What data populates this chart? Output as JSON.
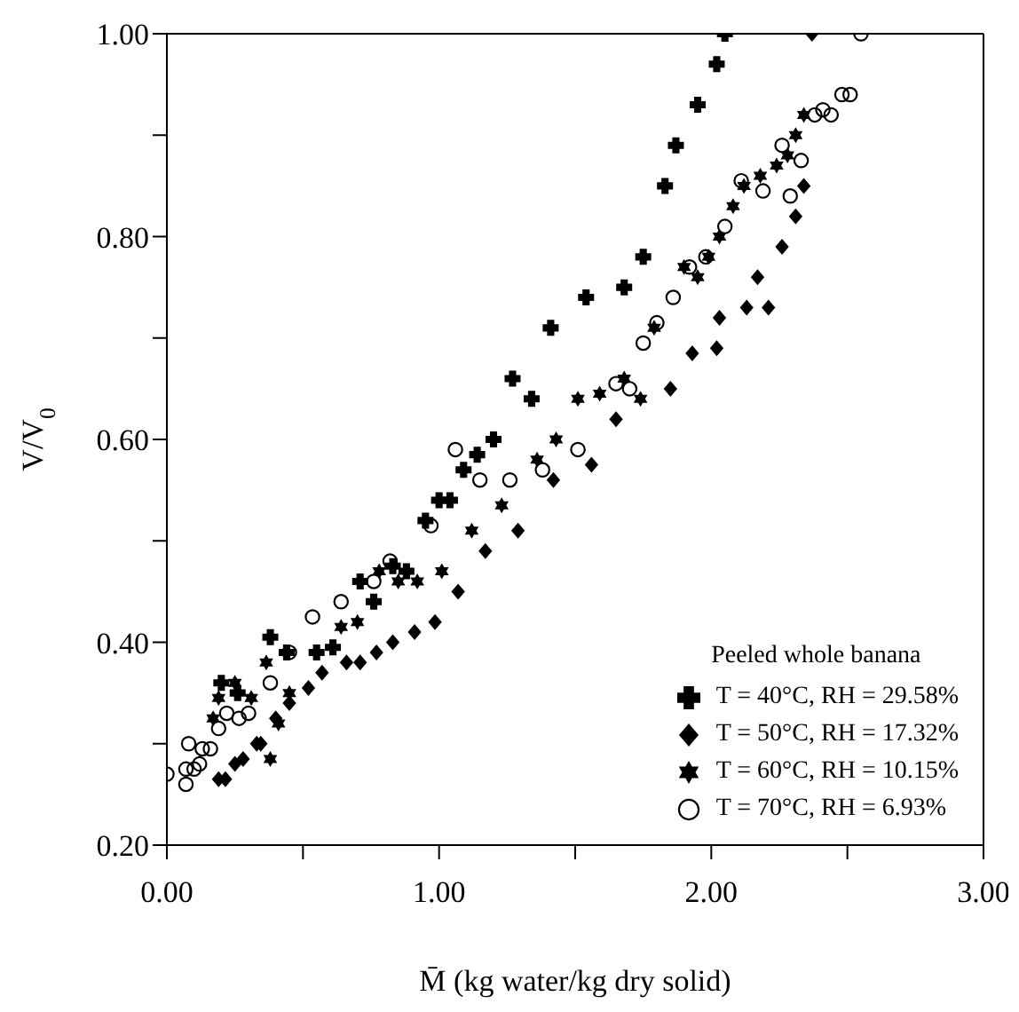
{
  "chart_data": {
    "type": "scatter",
    "xlabel": "M̄ (kg water/kg dry solid)",
    "ylabel": "V/V$_{0}$",
    "legend_title": "Peeled whole banana",
    "legend": "bottom right",
    "xlim": [
      0,
      3
    ],
    "xticks": [
      {
        "value": 0,
        "label": "0.00"
      },
      {
        "value": 0.5,
        "label": null
      },
      {
        "value": 1,
        "label": "1.00"
      },
      {
        "value": 1.5,
        "label": null
      },
      {
        "value": 2,
        "label": "2.00"
      },
      {
        "value": 2.5,
        "label": null
      },
      {
        "value": 3,
        "label": "3.00"
      }
    ],
    "ylim": [
      0.2,
      1
    ],
    "yticks": [
      {
        "value": 0.2,
        "label": "0.20"
      },
      {
        "value": 0.3,
        "label": null
      },
      {
        "value": 0.4,
        "label": "0.40"
      },
      {
        "value": 0.5,
        "label": null
      },
      {
        "value": 0.6,
        "label": "0.60"
      },
      {
        "value": 0.7,
        "label": null
      },
      {
        "value": 0.8,
        "label": "0.80"
      },
      {
        "value": 0.9,
        "label": null
      },
      {
        "value": 1,
        "label": "1.00"
      }
    ],
    "series": [
      {
        "name": "T = 40°C, RH = 29.58%",
        "color": "#000000",
        "marker": "cross",
        "x": [
          0.2,
          0.26,
          0.38,
          0.44,
          0.55,
          0.61,
          0.71,
          0.76,
          0.83,
          0.88,
          0.95,
          1.0,
          1.04,
          1.09,
          1.14,
          1.2,
          1.27,
          1.34,
          1.41,
          1.54,
          1.68,
          1.75,
          1.83,
          1.87,
          1.95,
          2.02,
          2.05
        ],
        "values": [
          0.36,
          0.35,
          0.405,
          0.39,
          0.39,
          0.395,
          0.46,
          0.44,
          0.475,
          0.47,
          0.52,
          0.54,
          0.54,
          0.57,
          0.585,
          0.6,
          0.66,
          0.64,
          0.71,
          0.74,
          0.75,
          0.78,
          0.85,
          0.89,
          0.93,
          0.97,
          1.0
        ]
      },
      {
        "name": "T = 50°C, RH = 17.32%",
        "color": "#000000",
        "marker": "diamond",
        "x": [
          0.19,
          0.215,
          0.25,
          0.28,
          0.33,
          0.345,
          0.4,
          0.45,
          0.52,
          0.57,
          0.66,
          0.71,
          0.77,
          0.83,
          0.91,
          0.985,
          1.07,
          1.17,
          1.29,
          1.42,
          1.56,
          1.65,
          1.85,
          1.93,
          2.02,
          2.03,
          2.13,
          2.21,
          2.17,
          2.26,
          2.31,
          2.34,
          2.37
        ],
        "values": [
          0.265,
          0.265,
          0.28,
          0.285,
          0.3,
          0.3,
          0.325,
          0.34,
          0.355,
          0.37,
          0.38,
          0.38,
          0.39,
          0.4,
          0.41,
          0.42,
          0.45,
          0.49,
          0.51,
          0.56,
          0.575,
          0.62,
          0.65,
          0.685,
          0.69,
          0.72,
          0.73,
          0.73,
          0.76,
          0.79,
          0.82,
          0.85,
          1.0
        ]
      },
      {
        "name": "T = 60°C, RH = 10.15%",
        "color": "#000000",
        "marker": "star",
        "x": [
          0.17,
          0.19,
          0.25,
          0.31,
          0.365,
          0.38,
          0.41,
          0.45,
          0.64,
          0.7,
          0.78,
          0.85,
          0.92,
          1.01,
          1.12,
          1.23,
          1.36,
          1.43,
          1.51,
          1.59,
          1.68,
          1.74,
          1.79,
          1.9,
          1.95,
          1.99,
          2.03,
          2.08,
          2.12,
          2.18,
          2.24,
          2.28,
          2.31,
          2.34
        ],
        "values": [
          0.325,
          0.345,
          0.36,
          0.345,
          0.38,
          0.285,
          0.32,
          0.35,
          0.415,
          0.42,
          0.47,
          0.46,
          0.46,
          0.47,
          0.51,
          0.535,
          0.58,
          0.6,
          0.64,
          0.645,
          0.66,
          0.64,
          0.71,
          0.77,
          0.76,
          0.78,
          0.8,
          0.83,
          0.85,
          0.86,
          0.87,
          0.88,
          0.9,
          0.92
        ]
      },
      {
        "name": "T = 70°C, RH = 6.93%",
        "color": "#000000",
        "marker": "circle",
        "x": [
          0.0,
          0.07,
          0.07,
          0.08,
          0.1,
          0.12,
          0.13,
          0.16,
          0.19,
          0.22,
          0.265,
          0.3,
          0.38,
          0.45,
          0.535,
          0.64,
          0.76,
          0.82,
          0.97,
          1.06,
          1.15,
          1.26,
          1.38,
          1.51,
          1.65,
          1.7,
          1.75,
          1.8,
          1.86,
          1.92,
          1.98,
          2.05,
          2.11,
          2.19,
          2.26,
          2.29,
          2.33,
          2.38,
          2.41,
          2.44,
          2.48,
          2.51,
          2.55
        ],
        "values": [
          0.27,
          0.26,
          0.275,
          0.3,
          0.275,
          0.28,
          0.295,
          0.295,
          0.315,
          0.33,
          0.325,
          0.33,
          0.36,
          0.39,
          0.425,
          0.44,
          0.46,
          0.48,
          0.515,
          0.59,
          0.56,
          0.56,
          0.57,
          0.59,
          0.655,
          0.65,
          0.695,
          0.715,
          0.74,
          0.77,
          0.78,
          0.81,
          0.855,
          0.845,
          0.89,
          0.84,
          0.875,
          0.92,
          0.925,
          0.92,
          0.94,
          0.94,
          1.0
        ]
      }
    ]
  }
}
